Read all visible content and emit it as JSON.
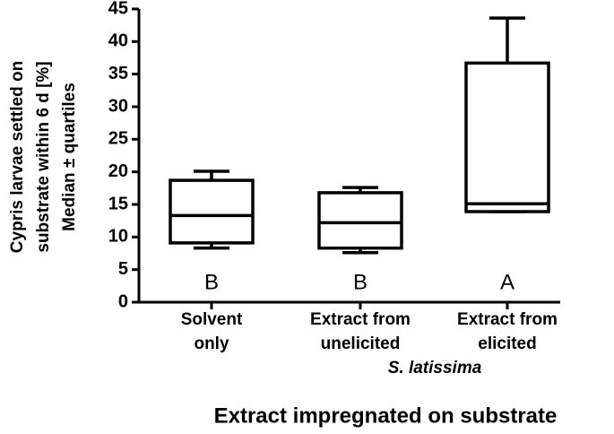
{
  "chart_data": {
    "type": "box",
    "y_title": [
      "Cypris larvae settled on",
      "substrate within 6 d [%]",
      "Median ± quartiles"
    ],
    "x_title": "Extract impregnated on substrate",
    "categories": [
      [
        "Solvent",
        "only"
      ],
      [
        "Extract from",
        "unelicited"
      ],
      [
        "Extract from",
        "elicited"
      ]
    ],
    "group_label": "S. latissima",
    "boxes": [
      {
        "min": 8.3,
        "q1": 9.1,
        "median": 13.3,
        "q3": 18.7,
        "max": 20.1
      },
      {
        "min": 7.6,
        "q1": 8.3,
        "median": 12.2,
        "q3": 16.8,
        "max": 17.6
      },
      {
        "min": 13.9,
        "q1": 13.9,
        "median": 15.1,
        "q3": 36.7,
        "max": 43.6
      }
    ],
    "letters": [
      "B",
      "B",
      "A"
    ],
    "color": "#000000",
    "ylim": [
      0,
      45
    ],
    "yticks": [
      0,
      5,
      10,
      15,
      20,
      25,
      30,
      35,
      40,
      45
    ]
  }
}
